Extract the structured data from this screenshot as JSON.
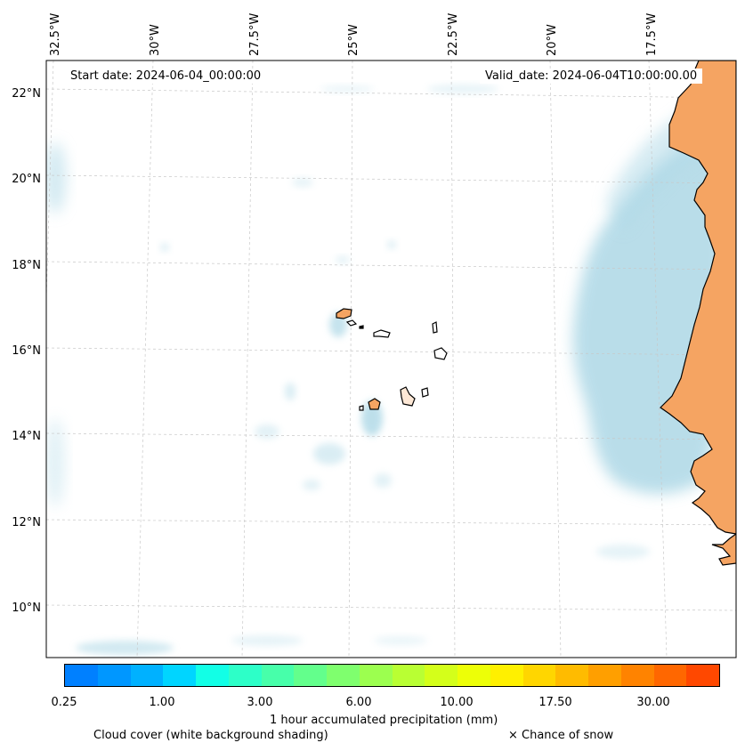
{
  "header": {
    "start_date": "Start date: 2024-06-04_00:00:00",
    "valid_date": "Valid_date: 2024-06-04T10:00:00.00"
  },
  "axes": {
    "lon_labels": [
      "32.5°W",
      "30°W",
      "27.5°W",
      "25°W",
      "22.5°W",
      "20°W",
      "17.5°W"
    ],
    "lat_labels": [
      "22°N",
      "20°N",
      "18°N",
      "16°N",
      "14°N",
      "12°N",
      "10°N"
    ]
  },
  "colorbar": {
    "label": "1 hour accumulated precipitation (mm)",
    "tick_labels": [
      "0.25",
      "1.00",
      "3.00",
      "6.00",
      "10.00",
      "17.50",
      "30.00"
    ],
    "colors": [
      "#0080ff",
      "#0097ff",
      "#00b1ff",
      "#00d5ff",
      "#12ffe6",
      "#2dffc8",
      "#47ffaa",
      "#63ff8c",
      "#7fff6e",
      "#9cff4f",
      "#b9ff33",
      "#d4ff1a",
      "#edff07",
      "#fff000",
      "#ffd600",
      "#ffbb00",
      "#ff9f00",
      "#ff8300",
      "#ff6700",
      "#ff4800"
    ]
  },
  "legend": {
    "cloud_cover": "Cloud cover (white background shading)",
    "snow": "× Chance of snow"
  },
  "colors": {
    "land": "#f5a462",
    "cloud": "#add8e6",
    "border": "#000000"
  }
}
